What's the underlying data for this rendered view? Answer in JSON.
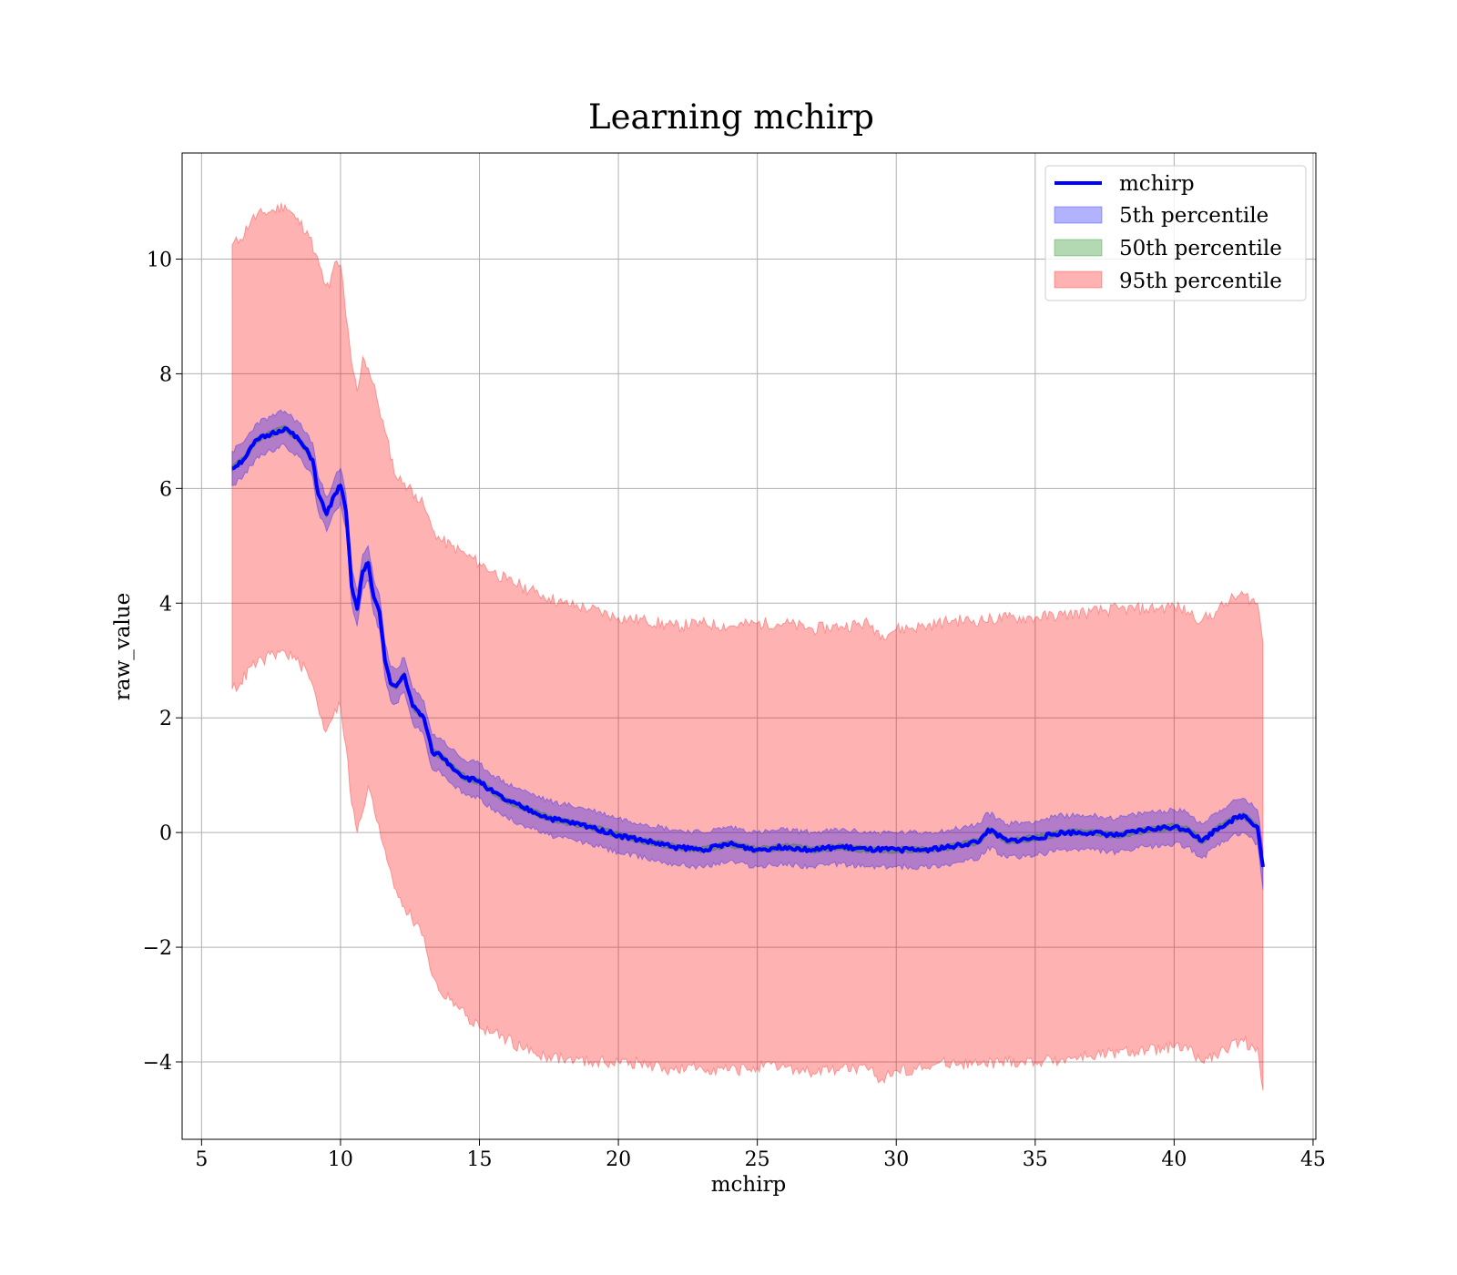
{
  "chart_data": {
    "type": "line",
    "title": "Learning mchirp",
    "xlabel": "mchirp",
    "ylabel": "raw_value",
    "xlim": [
      4.3,
      45.1
    ],
    "ylim": [
      -5.35,
      11.85
    ],
    "xticks": [
      5,
      10,
      15,
      20,
      25,
      30,
      35,
      40,
      45
    ],
    "xtick_labels": [
      "5",
      "10",
      "15",
      "20",
      "25",
      "30",
      "35",
      "40",
      "45"
    ],
    "yticks": [
      -4,
      -2,
      0,
      2,
      4,
      6,
      8,
      10
    ],
    "ytick_labels": [
      "−4",
      "−2",
      "0",
      "2",
      "4",
      "6",
      "8",
      "10"
    ],
    "grid": true,
    "legend_position": "top-right",
    "colors": {
      "line": "#0000ff",
      "band_5": "#0000ff",
      "band_50": "#008000",
      "band_95": "#ff0000"
    },
    "series": [
      {
        "name": "mchirp",
        "kind": "line",
        "x": [
          6.1,
          6.5,
          7.0,
          7.5,
          8.0,
          8.5,
          9.0,
          9.2,
          9.5,
          9.8,
          10.0,
          10.2,
          10.4,
          10.6,
          10.8,
          11.0,
          11.2,
          11.4,
          11.6,
          11.8,
          12.0,
          12.3,
          12.6,
          13.0,
          13.3,
          13.6,
          14.0,
          14.5,
          15.0,
          15.5,
          16.0,
          16.5,
          17.0,
          17.5,
          18.0,
          19.0,
          20.0,
          21.0,
          22.0,
          23.0,
          24.0,
          25.0,
          26.0,
          27.0,
          28.0,
          29.0,
          30.0,
          31.0,
          32.0,
          33.0,
          33.3,
          34.0,
          35.0,
          36.0,
          37.0,
          38.0,
          39.0,
          40.0,
          40.5,
          41.0,
          41.5,
          42.0,
          42.5,
          43.0,
          43.2
        ],
        "values": [
          6.35,
          6.5,
          6.85,
          6.95,
          7.05,
          6.85,
          6.5,
          5.9,
          5.55,
          5.9,
          6.05,
          5.6,
          4.3,
          3.9,
          4.55,
          4.7,
          4.1,
          3.85,
          3.0,
          2.6,
          2.55,
          2.75,
          2.2,
          2.0,
          1.4,
          1.35,
          1.15,
          0.95,
          0.9,
          0.7,
          0.55,
          0.45,
          0.35,
          0.25,
          0.2,
          0.1,
          -0.05,
          -0.15,
          -0.25,
          -0.3,
          -0.2,
          -0.3,
          -0.25,
          -0.3,
          -0.25,
          -0.3,
          -0.3,
          -0.3,
          -0.25,
          -0.15,
          0.05,
          -0.15,
          -0.1,
          0.0,
          0.0,
          -0.05,
          0.05,
          0.1,
          0.05,
          -0.15,
          0.05,
          0.2,
          0.3,
          0.1,
          -0.6
        ]
      },
      {
        "name": "5th percentile",
        "kind": "band",
        "x": [
          6.1,
          6.5,
          7.0,
          7.5,
          8.0,
          8.5,
          9.0,
          9.2,
          9.5,
          9.8,
          10.0,
          10.2,
          10.4,
          10.6,
          10.8,
          11.0,
          11.2,
          11.4,
          11.6,
          11.8,
          12.0,
          12.3,
          12.6,
          13.0,
          13.3,
          13.6,
          14.0,
          14.5,
          15.0,
          15.5,
          16.0,
          16.5,
          17.0,
          17.5,
          18.0,
          19.0,
          20.0,
          21.0,
          22.0,
          23.0,
          24.0,
          25.0,
          26.0,
          27.0,
          28.0,
          29.0,
          30.0,
          31.0,
          32.0,
          33.0,
          33.3,
          34.0,
          35.0,
          36.0,
          37.0,
          38.0,
          39.0,
          40.0,
          40.5,
          41.0,
          41.5,
          42.0,
          42.5,
          43.0,
          43.2
        ],
        "lower": [
          6.05,
          6.2,
          6.55,
          6.65,
          6.75,
          6.55,
          6.2,
          5.6,
          5.25,
          5.6,
          5.75,
          5.3,
          4.0,
          3.6,
          4.25,
          4.4,
          3.8,
          3.55,
          2.7,
          2.3,
          2.25,
          2.45,
          1.9,
          1.7,
          1.1,
          1.05,
          0.85,
          0.65,
          0.6,
          0.4,
          0.25,
          0.15,
          0.05,
          -0.05,
          -0.1,
          -0.2,
          -0.35,
          -0.45,
          -0.55,
          -0.6,
          -0.5,
          -0.6,
          -0.55,
          -0.6,
          -0.55,
          -0.6,
          -0.6,
          -0.6,
          -0.55,
          -0.45,
          -0.25,
          -0.45,
          -0.4,
          -0.3,
          -0.3,
          -0.35,
          -0.25,
          -0.2,
          -0.25,
          -0.45,
          -0.25,
          -0.1,
          0.0,
          -0.2,
          -1.0
        ],
        "upper": [
          6.65,
          6.8,
          7.15,
          7.25,
          7.35,
          7.15,
          6.8,
          6.2,
          5.85,
          6.2,
          6.35,
          5.9,
          4.6,
          4.2,
          4.85,
          5.0,
          4.4,
          4.15,
          3.3,
          2.9,
          2.85,
          3.05,
          2.5,
          2.3,
          1.7,
          1.65,
          1.45,
          1.25,
          1.2,
          1.0,
          0.85,
          0.75,
          0.65,
          0.55,
          0.5,
          0.4,
          0.25,
          0.15,
          0.05,
          0.0,
          0.1,
          0.0,
          0.05,
          0.0,
          0.05,
          0.0,
          0.0,
          0.0,
          0.05,
          0.15,
          0.35,
          0.15,
          0.2,
          0.3,
          0.3,
          0.25,
          0.35,
          0.4,
          0.35,
          0.15,
          0.35,
          0.5,
          0.6,
          0.4,
          -0.3
        ]
      },
      {
        "name": "50th percentile",
        "kind": "band",
        "x": [
          6.1,
          6.5,
          7.0,
          7.5,
          8.0,
          8.5,
          9.0,
          9.2,
          9.5,
          9.8,
          10.0,
          10.2,
          10.4,
          10.6,
          10.8,
          11.0,
          11.2,
          11.4,
          11.6,
          11.8,
          12.0,
          12.3,
          12.6,
          13.0,
          13.3,
          13.6,
          14.0,
          14.5,
          15.0,
          15.5,
          16.0,
          16.5,
          17.0,
          17.5,
          18.0,
          19.0,
          20.0,
          21.0,
          22.0,
          23.0,
          24.0,
          25.0,
          26.0,
          27.0,
          28.0,
          29.0,
          30.0,
          31.0,
          32.0,
          33.0,
          33.3,
          34.0,
          35.0,
          36.0,
          37.0,
          38.0,
          39.0,
          40.0,
          40.5,
          41.0,
          41.5,
          42.0,
          42.5,
          43.0,
          43.2
        ],
        "lower": [
          6.3,
          6.45,
          6.8,
          6.9,
          7.0,
          6.8,
          6.45,
          5.85,
          5.5,
          5.85,
          6.0,
          5.55,
          4.25,
          3.85,
          4.5,
          4.65,
          4.05,
          3.8,
          2.95,
          2.55,
          2.5,
          2.7,
          2.15,
          1.95,
          1.35,
          1.3,
          1.1,
          0.9,
          0.85,
          0.65,
          0.5,
          0.4,
          0.3,
          0.2,
          0.15,
          0.05,
          -0.1,
          -0.2,
          -0.3,
          -0.35,
          -0.25,
          -0.35,
          -0.3,
          -0.35,
          -0.3,
          -0.35,
          -0.35,
          -0.35,
          -0.3,
          -0.2,
          0.0,
          -0.2,
          -0.15,
          -0.05,
          -0.05,
          -0.1,
          0.0,
          0.05,
          0.0,
          -0.2,
          0.0,
          0.15,
          0.25,
          0.05,
          -0.65
        ],
        "upper": [
          6.4,
          6.55,
          6.9,
          7.0,
          7.1,
          6.9,
          6.55,
          5.95,
          5.6,
          5.95,
          6.1,
          5.65,
          4.35,
          3.95,
          4.6,
          4.75,
          4.15,
          3.9,
          3.05,
          2.65,
          2.6,
          2.8,
          2.25,
          2.05,
          1.45,
          1.4,
          1.2,
          1.0,
          0.95,
          0.75,
          0.6,
          0.5,
          0.4,
          0.3,
          0.25,
          0.15,
          0.0,
          -0.1,
          -0.2,
          -0.25,
          -0.15,
          -0.25,
          -0.2,
          -0.25,
          -0.2,
          -0.25,
          -0.25,
          -0.25,
          -0.2,
          -0.1,
          0.1,
          -0.1,
          -0.05,
          0.05,
          0.05,
          0.0,
          0.1,
          0.15,
          0.1,
          -0.1,
          0.1,
          0.25,
          0.35,
          0.15,
          -0.55
        ]
      },
      {
        "name": "95th percentile",
        "kind": "band",
        "x": [
          6.1,
          6.4,
          6.8,
          7.2,
          7.6,
          8.0,
          8.4,
          8.8,
          9.1,
          9.4,
          9.6,
          9.8,
          10.0,
          10.2,
          10.4,
          10.6,
          10.8,
          11.0,
          11.3,
          11.6,
          12.0,
          12.3,
          12.7,
          13.0,
          13.3,
          13.6,
          14.0,
          14.5,
          15.0,
          15.5,
          16.0,
          16.5,
          17.0,
          17.5,
          18.0,
          19.0,
          20.0,
          21.0,
          22.0,
          23.0,
          24.0,
          25.0,
          26.0,
          27.0,
          28.0,
          29.0,
          29.5,
          30.0,
          31.0,
          32.0,
          33.0,
          34.0,
          35.0,
          36.0,
          37.0,
          38.0,
          39.0,
          40.0,
          40.5,
          41.0,
          41.5,
          42.0,
          42.5,
          43.0,
          43.2
        ],
        "lower": [
          2.5,
          2.6,
          2.9,
          3.0,
          3.1,
          3.15,
          3.0,
          2.8,
          2.4,
          1.8,
          1.9,
          2.15,
          2.2,
          1.5,
          0.5,
          0.0,
          0.35,
          0.8,
          0.2,
          -0.3,
          -1.0,
          -1.3,
          -1.6,
          -1.8,
          -2.5,
          -2.8,
          -2.9,
          -3.2,
          -3.4,
          -3.5,
          -3.6,
          -3.75,
          -3.85,
          -3.9,
          -3.95,
          -4.0,
          -4.0,
          -4.05,
          -4.15,
          -4.1,
          -4.15,
          -4.1,
          -4.1,
          -4.2,
          -4.1,
          -4.15,
          -4.3,
          -4.15,
          -4.1,
          -4.0,
          -4.05,
          -4.0,
          -4.0,
          -3.95,
          -3.9,
          -3.85,
          -3.8,
          -3.75,
          -3.8,
          -4.0,
          -3.9,
          -3.75,
          -3.65,
          -3.75,
          -4.5
        ],
        "upper": [
          10.25,
          10.35,
          10.7,
          10.8,
          10.85,
          10.95,
          10.7,
          10.5,
          10.1,
          9.6,
          9.5,
          9.95,
          9.9,
          9.0,
          8.2,
          7.7,
          8.3,
          8.1,
          7.6,
          7.0,
          6.2,
          6.1,
          5.9,
          5.7,
          5.3,
          5.1,
          5.0,
          4.85,
          4.7,
          4.55,
          4.4,
          4.3,
          4.2,
          4.1,
          4.0,
          3.9,
          3.75,
          3.7,
          3.6,
          3.65,
          3.6,
          3.65,
          3.65,
          3.55,
          3.6,
          3.65,
          3.45,
          3.55,
          3.6,
          3.7,
          3.7,
          3.75,
          3.75,
          3.8,
          3.85,
          3.9,
          3.9,
          3.95,
          3.85,
          3.7,
          3.85,
          4.05,
          4.15,
          4.0,
          3.3
        ]
      }
    ]
  }
}
